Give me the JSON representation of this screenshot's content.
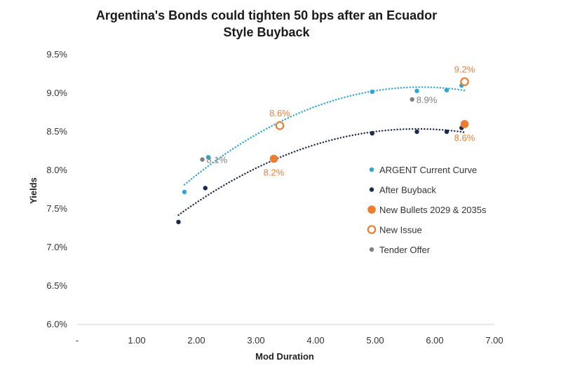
{
  "chart_data": {
    "type": "scatter",
    "title_lines": [
      "Argentina's Bonds could tighten 50 bps after an Ecuador",
      "Style Buyback"
    ],
    "xlabel": "Mod Duration",
    "ylabel": "Yields",
    "xlim": [
      0,
      7
    ],
    "ylim": [
      6.0,
      9.5
    ],
    "x_ticks": [
      {
        "value": 0,
        "label": "-"
      },
      {
        "value": 1,
        "label": "1.00"
      },
      {
        "value": 2,
        "label": "2.00"
      },
      {
        "value": 3,
        "label": "3.00"
      },
      {
        "value": 4,
        "label": "4.00"
      },
      {
        "value": 5,
        "label": "5.00"
      },
      {
        "value": 6,
        "label": "6.00"
      },
      {
        "value": 7,
        "label": "7.00"
      }
    ],
    "y_ticks": [
      {
        "value": 6.0,
        "label": "6.0%"
      },
      {
        "value": 6.5,
        "label": "6.5%"
      },
      {
        "value": 7.0,
        "label": "7.0%"
      },
      {
        "value": 7.5,
        "label": "7.5%"
      },
      {
        "value": 8.0,
        "label": "8.0%"
      },
      {
        "value": 8.5,
        "label": "8.5%"
      },
      {
        "value": 9.0,
        "label": "9.0%"
      },
      {
        "value": 9.5,
        "label": "9.5%"
      }
    ],
    "grid": false,
    "legend_position": "right",
    "series": [
      {
        "name": "ARGENT Current Curve",
        "color": "#2aa7d6",
        "marker": "dot",
        "trendline": "dotted",
        "points": [
          [
            1.8,
            7.72
          ],
          [
            2.2,
            8.17
          ],
          [
            4.95,
            9.02
          ],
          [
            5.7,
            9.03
          ],
          [
            6.2,
            9.04
          ],
          [
            6.45,
            9.1
          ]
        ]
      },
      {
        "name": "After Buyback",
        "color": "#1d2b4a",
        "marker": "dot",
        "trendline": "dotted",
        "points": [
          [
            1.7,
            7.33
          ],
          [
            2.15,
            7.77
          ],
          [
            4.95,
            8.48
          ],
          [
            5.7,
            8.5
          ],
          [
            6.2,
            8.5
          ],
          [
            6.45,
            8.55
          ]
        ]
      },
      {
        "name": "New Bullets 2029 & 2035s",
        "color": "#ec7d31",
        "marker": "filled-circle",
        "points": [
          [
            3.3,
            8.15
          ],
          [
            6.5,
            8.6
          ]
        ]
      },
      {
        "name": "New Issue",
        "color": "#ec7d31",
        "marker": "hollow-circle",
        "points": [
          [
            3.4,
            8.58
          ],
          [
            6.5,
            9.15
          ]
        ]
      },
      {
        "name": "Tender Offer",
        "color": "#808080",
        "marker": "dot",
        "points": [
          [
            2.1,
            8.14
          ],
          [
            5.62,
            8.92
          ]
        ]
      }
    ],
    "annotations": [
      {
        "text": "9.2%",
        "x": 6.5,
        "y": 9.15,
        "color": "#ec7d31",
        "anchor": "above"
      },
      {
        "text": "8.6%",
        "x": 3.4,
        "y": 8.58,
        "color": "#ec7d31",
        "anchor": "above"
      },
      {
        "text": "8.9%",
        "x": 5.62,
        "y": 8.92,
        "color": "#808080",
        "anchor": "right"
      },
      {
        "text": "8.6%",
        "x": 6.5,
        "y": 8.6,
        "color": "#ec7d31",
        "anchor": "below"
      },
      {
        "text": "8.1%",
        "x": 2.1,
        "y": 8.14,
        "color": "#808080",
        "anchor": "right"
      },
      {
        "text": "8.2%",
        "x": 3.3,
        "y": 8.15,
        "color": "#ec7d31",
        "anchor": "below"
      }
    ]
  }
}
